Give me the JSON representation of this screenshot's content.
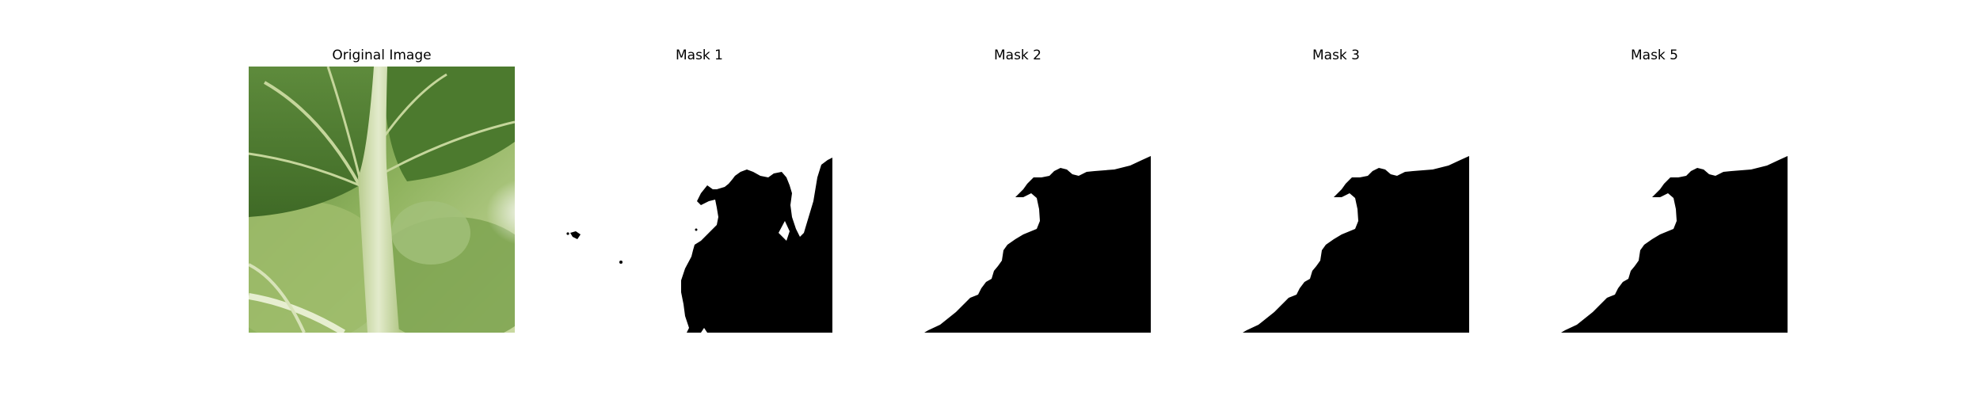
{
  "panels": [
    {
      "title": "Original Image",
      "kind": "photo"
    },
    {
      "title": "Mask 1",
      "kind": "mask"
    },
    {
      "title": "Mask 2",
      "kind": "mask"
    },
    {
      "title": "Mask 3",
      "kind": "mask"
    },
    {
      "title": "Mask 5",
      "kind": "mask"
    }
  ],
  "colors": {
    "background": "#ffffff",
    "mask_fill": "#000000",
    "leaf_dark": "#3f6a26",
    "leaf_mid": "#5e8b3c",
    "leaf_light": "#a9c47a",
    "stem": "#d9e3bd",
    "backlight": "#eef2e4"
  }
}
